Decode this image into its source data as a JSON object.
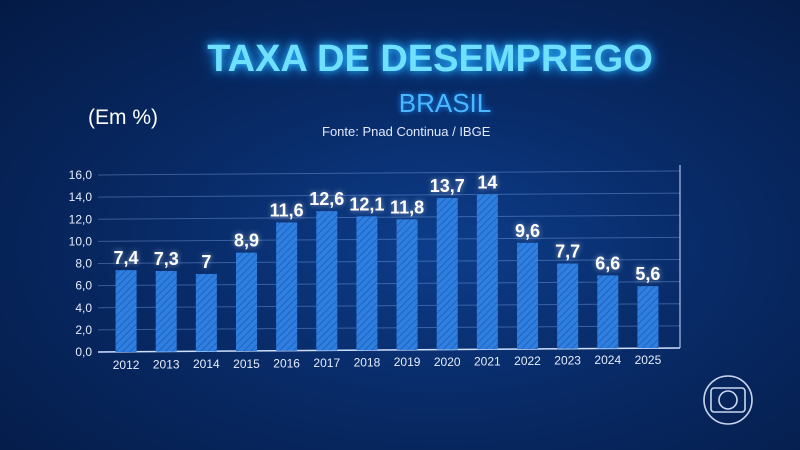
{
  "chart_data": {
    "type": "bar",
    "title": "TAXA DE DESEMPREGO",
    "subtitle": "BRASIL",
    "source": "Fonte: Pnad Continua / IBGE",
    "ylabel": "(Em %)",
    "xlabel": "",
    "ylim": [
      0,
      16
    ],
    "yticks": [
      "0,0",
      "2,0",
      "4,0",
      "6,0",
      "8,0",
      "10,0",
      "12,0",
      "14,0",
      "16,0"
    ],
    "grid": true,
    "categories": [
      "2012",
      "2013",
      "2014",
      "2015",
      "2016",
      "2017",
      "2018",
      "2019",
      "2020",
      "2021",
      "2022",
      "2023",
      "2024",
      "2025"
    ],
    "values": [
      7.4,
      7.3,
      7,
      8.9,
      11.6,
      12.6,
      12.1,
      11.8,
      13.7,
      14,
      9.6,
      7.7,
      6.6,
      5.6
    ],
    "value_labels": [
      "7,4",
      "7,3",
      "7",
      "8,9",
      "11,6",
      "12,6",
      "12,1",
      "11,8",
      "13,7",
      "14",
      "9,6",
      "7,7",
      "6,6",
      "5,6"
    ],
    "bar_color": "#2f7fe0"
  },
  "logo": {
    "icon": "globo-logo-icon"
  }
}
